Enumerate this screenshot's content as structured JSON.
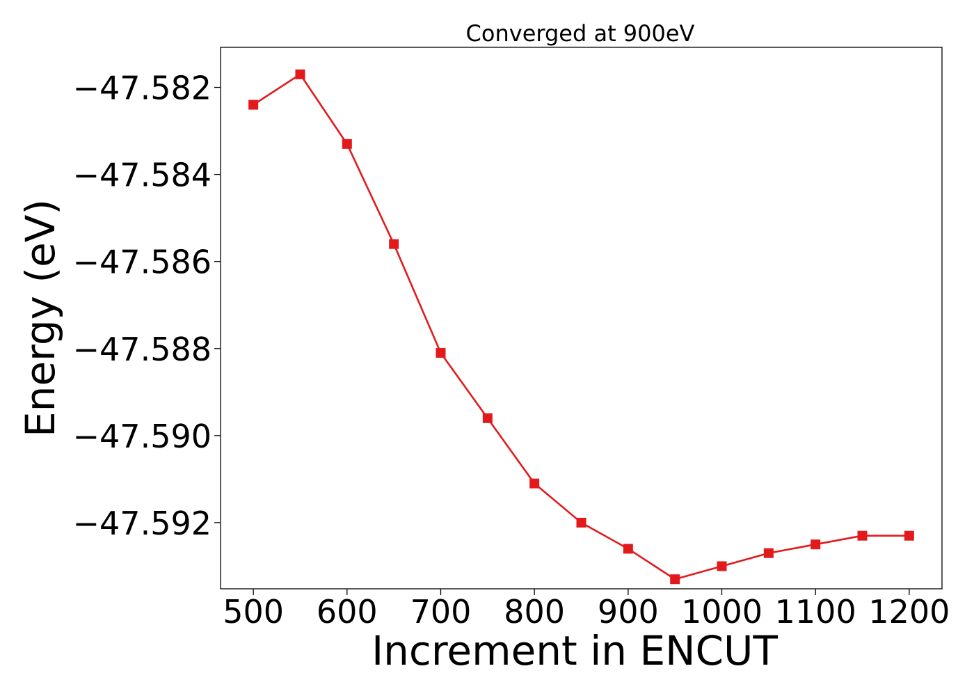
{
  "chart_data": {
    "type": "line",
    "title": "Converged at 900eV",
    "xlabel": "Increment in ENCUT",
    "ylabel": "Energy (eV)",
    "x": [
      500,
      550,
      600,
      650,
      700,
      750,
      800,
      850,
      900,
      950,
      1000,
      1050,
      1100,
      1150,
      1200
    ],
    "series": [
      {
        "values": [
          -47.5824,
          -47.5817,
          -47.5833,
          -47.5856,
          -47.5881,
          -47.5896,
          -47.5911,
          -47.592,
          -47.5926,
          -47.5933,
          -47.593,
          -47.5927,
          -47.5925,
          -47.5923,
          -47.5923
        ],
        "color": "#e31a1c",
        "marker": "square"
      }
    ],
    "xlim": [
      465,
      1235
    ],
    "ylim": [
      -47.59352,
      -47.58108
    ],
    "xticks": [
      500,
      600,
      700,
      800,
      900,
      1000,
      1100,
      1200
    ],
    "xtick_labels": [
      "500",
      "600",
      "700",
      "800",
      "900",
      "1000",
      "1100",
      "1200"
    ],
    "yticks": [
      -47.582,
      -47.584,
      -47.586,
      -47.588,
      -47.59,
      -47.592
    ],
    "ytick_labels": [
      "−47.582",
      "−47.584",
      "−47.586",
      "−47.588",
      "−47.590",
      "−47.592"
    ],
    "grid": false,
    "legend": false
  }
}
